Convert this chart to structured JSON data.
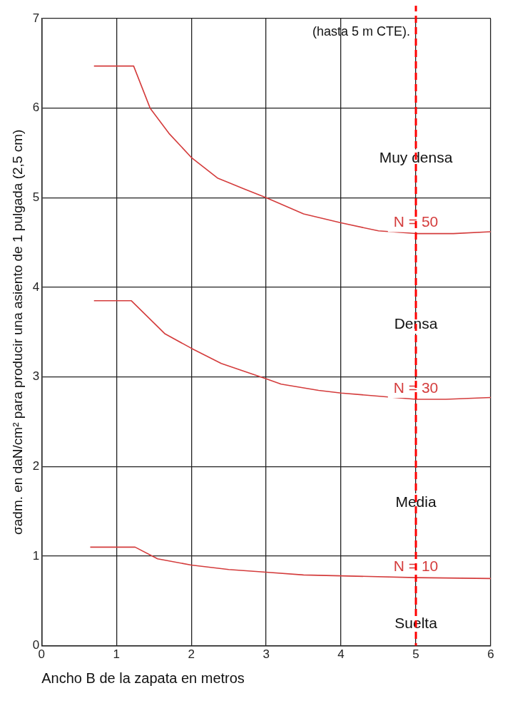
{
  "chart_data": {
    "type": "line",
    "xlabel": "Ancho B de la zapata en metros",
    "ylabel": "σadm. en daN/cm² para producir una asiento de 1 pulgada (2,5 cm)",
    "xlim": [
      0,
      6
    ],
    "xticks": [
      0,
      1,
      2,
      3,
      4,
      5,
      6
    ],
    "ylim": [
      0,
      7
    ],
    "yticks": [
      0,
      1,
      2,
      3,
      4,
      5,
      6,
      7
    ],
    "grid": true,
    "legend": false,
    "marker": "none",
    "line_style": "solid",
    "series": [
      {
        "name": "N = 50",
        "color": "#d43c3c",
        "x": [
          0.7,
          1.23,
          1.45,
          1.7,
          2.0,
          2.35,
          2.7,
          3.0,
          3.5,
          4.0,
          4.5,
          5.0,
          5.5,
          6.0
        ],
        "values": [
          6.47,
          6.47,
          6.0,
          5.72,
          5.45,
          5.22,
          5.1,
          5.0,
          4.82,
          4.72,
          4.63,
          4.6,
          4.6,
          4.62
        ]
      },
      {
        "name": "N = 30",
        "color": "#d43c3c",
        "x": [
          0.7,
          1.2,
          1.65,
          2.0,
          2.4,
          3.0,
          3.2,
          3.7,
          4.0,
          5.0,
          5.4,
          6.0
        ],
        "values": [
          3.85,
          3.85,
          3.48,
          3.32,
          3.15,
          2.98,
          2.92,
          2.85,
          2.82,
          2.75,
          2.75,
          2.77
        ]
      },
      {
        "name": "N = 10",
        "color": "#d43c3c",
        "x": [
          0.65,
          1.25,
          1.55,
          2.0,
          2.5,
          3.0,
          3.5,
          4.0,
          5.0,
          6.0
        ],
        "values": [
          1.1,
          1.1,
          0.97,
          0.9,
          0.85,
          0.82,
          0.79,
          0.78,
          0.76,
          0.75
        ]
      }
    ],
    "ref_lines": [
      {
        "axis": "x",
        "value": 5,
        "label": "(hasta 5 m CTE).",
        "color": "#ff0000",
        "line_style": "dashed"
      }
    ],
    "annotations": [
      "Muy densa",
      "Densa",
      "Media",
      "Suelta"
    ]
  }
}
